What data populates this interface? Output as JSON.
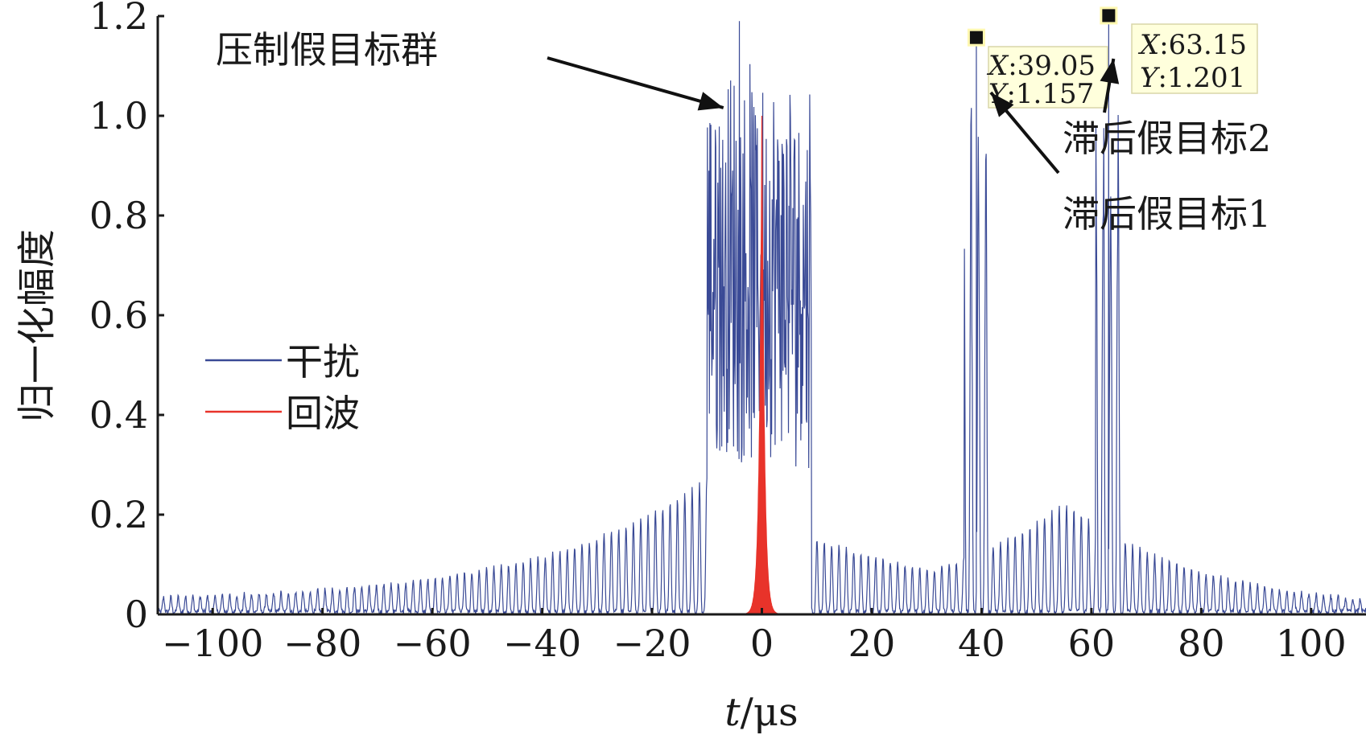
{
  "chart_data": {
    "type": "line",
    "title": "",
    "xlabel_italic": "t",
    "xlabel_rest": "/μs",
    "ylabel": "归一化幅度",
    "xlim": [
      -110,
      110
    ],
    "ylim": [
      0,
      1.2
    ],
    "xticks": [
      "−100",
      "−80",
      "−60",
      "−40",
      "−20",
      "0",
      "20",
      "40",
      "60",
      "80",
      "100"
    ],
    "xtick_values": [
      -100,
      -80,
      -60,
      -40,
      -20,
      0,
      20,
      40,
      60,
      80,
      100
    ],
    "yticks": [
      "0",
      "0.2",
      "0.4",
      "0.6",
      "0.8",
      "1.0",
      "1.2"
    ],
    "ytick_values": [
      0,
      0.2,
      0.4,
      0.6,
      0.8,
      1.0,
      1.2
    ],
    "grid": false,
    "legend_position": "left-middle",
    "series": [
      {
        "name": "干扰",
        "color": "#3a4a96",
        "envelope": {
          "main_group": {
            "center": -0.5,
            "half_width": 9.5,
            "peak": 1.2
          },
          "lagged_target_1": {
            "center": 39.05,
            "peak": 1.157
          },
          "lagged_target_2": {
            "center": 63.15,
            "peak": 1.201
          },
          "sidelobe_decay": "exponential"
        }
      },
      {
        "name": "回波",
        "color": "#e8332a",
        "peak_x": 0,
        "peak_y": 1.0
      }
    ],
    "annotations": [
      {
        "text": "压制假目标群",
        "target_x": -7,
        "target_y": 1.0
      },
      {
        "text": "滞后假目标2",
        "target_x": 63.15,
        "target_y": 1.05
      },
      {
        "text": "滞后假目标1",
        "target_x": 39.05,
        "target_y": 1.05
      }
    ],
    "datatips": [
      {
        "x_label": "X",
        "x_value": ":39.05",
        "y_label": "Y",
        "y_value": ":1.157",
        "x": 39.05,
        "y": 1.157
      },
      {
        "x_label": "X",
        "x_value": ":63.15",
        "y_label": "Y",
        "y_value": ":1.201",
        "x": 63.15,
        "y": 1.201
      }
    ]
  }
}
